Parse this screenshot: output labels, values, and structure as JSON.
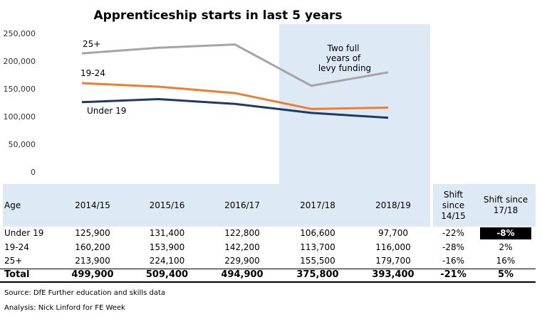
{
  "chart_data": {
    "type": "line",
    "title": "Apprenticeship starts in last 5 years",
    "categories": [
      "2014/15",
      "2015/16",
      "2016/17",
      "2017/18",
      "2018/19"
    ],
    "ylim": [
      0,
      250000
    ],
    "yticks": [
      "250,000",
      "200,000",
      "150,000",
      "100,000",
      "50,000",
      "0"
    ],
    "ytick_values": [
      250000,
      200000,
      150000,
      100000,
      50000,
      0
    ],
    "grid": false,
    "series": [
      {
        "name": "25+",
        "color": "#a5a5a5",
        "values": [
          213900,
          224100,
          229900,
          155500,
          179700
        ]
      },
      {
        "name": "19-24",
        "color": "#ed7d31",
        "values": [
          160200,
          153900,
          142200,
          113700,
          116000
        ]
      },
      {
        "name": "Under 19",
        "color": "#1f3864",
        "values": [
          125900,
          131400,
          122800,
          106600,
          97700
        ]
      }
    ],
    "annotation": "Two full years of levy funding",
    "highlight_color": "#ddeaf6"
  },
  "table": {
    "headers": [
      "Age",
      "2014/15",
      "2015/16",
      "2016/17",
      "2017/18",
      "2018/19",
      "Shift since 14/15",
      "Shift since 17/18"
    ],
    "rows": [
      [
        "Under 19",
        "125,900",
        "131,400",
        "122,800",
        "106,600",
        "97,700",
        "-22%",
        "-8%"
      ],
      [
        "19-24",
        "160,200",
        "153,900",
        "142,200",
        "113,700",
        "116,000",
        "-28%",
        "2%"
      ],
      [
        "25+",
        "213,900",
        "224,100",
        "229,900",
        "155,500",
        "179,700",
        "-16%",
        "16%"
      ]
    ],
    "total": [
      "Total",
      "499,900",
      "509,400",
      "494,900",
      "375,800",
      "393,400",
      "-21%",
      "5%"
    ]
  },
  "source": "Source: DfE Further education and skills data",
  "analysis": "Analysis: Nick Linford for FE Week"
}
